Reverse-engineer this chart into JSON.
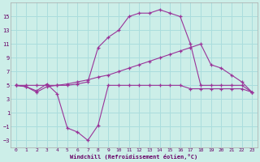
{
  "xlabel": "Windchill (Refroidissement éolien,°C)",
  "bg_color": "#cceee8",
  "grid_color": "#aadddd",
  "line_color": "#993399",
  "x": [
    0,
    1,
    2,
    3,
    4,
    5,
    6,
    7,
    8,
    9,
    10,
    11,
    12,
    13,
    14,
    15,
    16,
    17,
    18,
    19,
    20,
    21,
    22,
    23
  ],
  "line1": [
    5.0,
    5.0,
    5.0,
    5.0,
    5.0,
    5.0,
    5.2,
    5.5,
    10.5,
    12.0,
    13.0,
    15.0,
    15.5,
    15.5,
    16.0,
    15.5,
    15.0,
    11.0,
    5.0,
    5.0,
    5.0,
    5.0,
    5.0,
    4.0
  ],
  "line2": [
    5.0,
    4.8,
    4.2,
    5.2,
    3.8,
    -1.2,
    -1.8,
    -3.0,
    -0.8,
    5.0,
    5.0,
    5.0,
    5.0,
    5.0,
    5.0,
    5.0,
    5.0,
    4.5,
    4.5,
    4.5,
    4.5,
    4.5,
    4.5,
    4.0
  ],
  "line3": [
    5.0,
    4.8,
    4.0,
    4.8,
    5.0,
    5.2,
    5.5,
    5.8,
    6.2,
    6.5,
    7.0,
    7.5,
    8.0,
    8.5,
    9.0,
    9.5,
    10.0,
    10.5,
    11.0,
    8.0,
    7.5,
    6.5,
    5.5,
    4.0
  ],
  "ylim": [
    -4,
    17
  ],
  "yticks": [
    -3,
    -1,
    1,
    3,
    5,
    7,
    9,
    11,
    13,
    15
  ],
  "xticks": [
    0,
    1,
    2,
    3,
    4,
    5,
    6,
    7,
    8,
    9,
    10,
    11,
    12,
    13,
    14,
    15,
    16,
    17,
    18,
    19,
    20,
    21,
    22,
    23
  ]
}
